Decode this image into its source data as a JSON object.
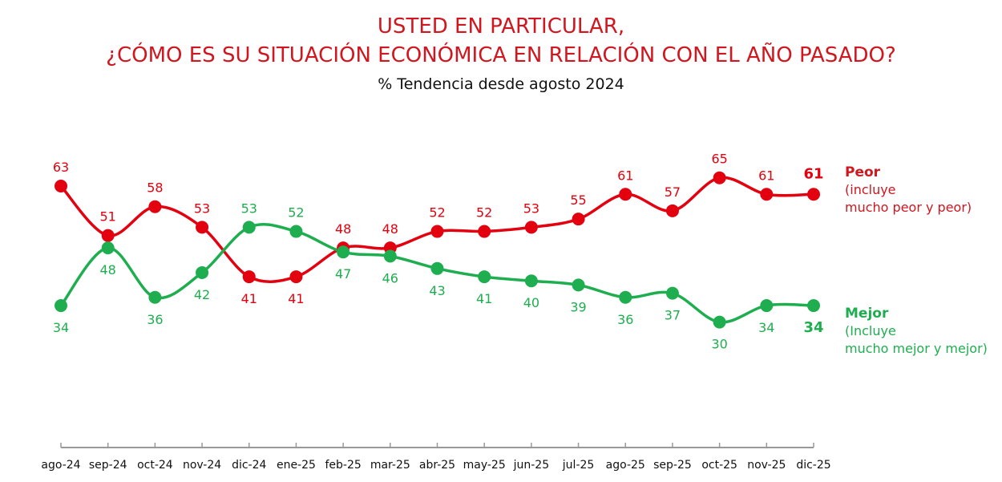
{
  "title_line1": "USTED EN PARTICULAR,",
  "title_line2": "¿CÓMO ES SU SITUACIÓN ECONÓMICA EN RELACIÓN CON EL AÑO PASADO?",
  "subtitle": "%  Tendencia desde agosto 2024",
  "colors": {
    "peor": "#e3000f",
    "mejor": "#1fae4f",
    "title": "#d0161e"
  },
  "chart_data": {
    "type": "line",
    "categories": [
      "ago-24",
      "sep-24",
      "oct-24",
      "nov-24",
      "dic-24",
      "ene-25",
      "feb-25",
      "mar-25",
      "abr-25",
      "may-25",
      "jun-25",
      "jul-25",
      "ago-25",
      "sep-25",
      "oct-25",
      "nov-25",
      "dic-25"
    ],
    "series": [
      {
        "name": "Peor",
        "note": "(incluye\nmucho peor y peor)",
        "values": [
          63,
          51,
          58,
          53,
          41,
          41,
          48,
          48,
          52,
          52,
          53,
          55,
          61,
          57,
          65,
          61,
          61
        ]
      },
      {
        "name": "Mejor",
        "note": "(Incluye\nmucho mejor y mejor)",
        "values": [
          34,
          48,
          36,
          42,
          53,
          52,
          47,
          46,
          43,
          41,
          40,
          39,
          36,
          37,
          30,
          34,
          34
        ]
      }
    ],
    "data_labels": true,
    "grid": false,
    "legend": "right"
  }
}
